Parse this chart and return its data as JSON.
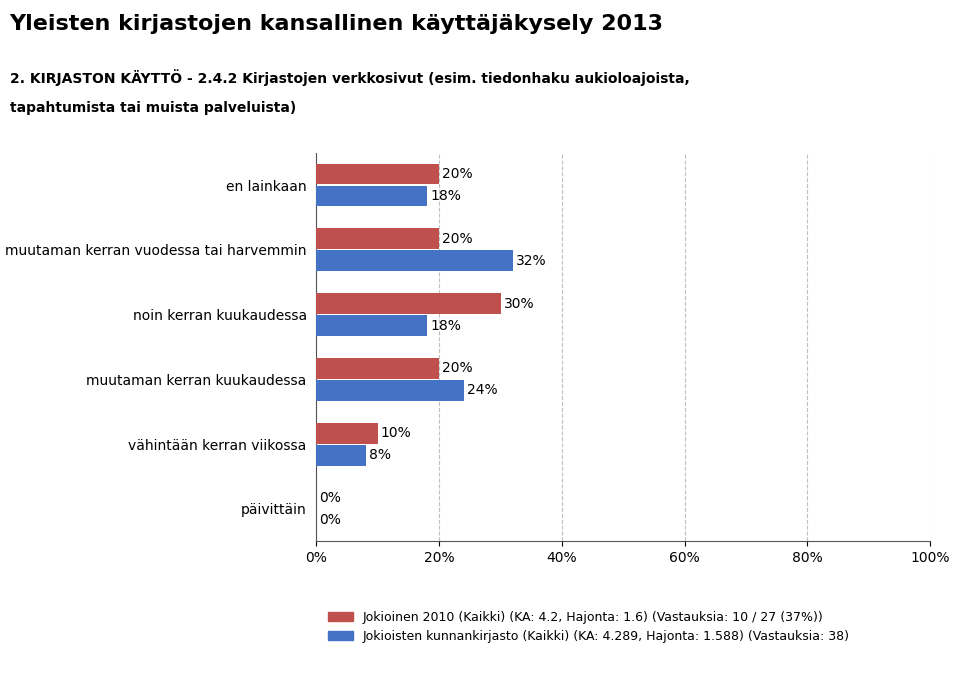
{
  "title": "Yleisten kirjastojen kansallinen käyttäjäkysely 2013",
  "subtitle1": "2. KIRJASTON KÄYTTÖ - 2.4.2 Kirjastojen verkkosivut (esim. tiedonhaku aukioloajoista,",
  "subtitle2": "tapahtumista tai muista palveluista)",
  "categories": [
    "en lainkaan",
    "muutaman kerran vuodessa tai harvemmin",
    "noin kerran kuukaudessa",
    "muutaman kerran kuukaudessa",
    "vähintään kerran viikossa",
    "päivittäin"
  ],
  "series1_name": "Jokioinen 2010 (Kaikki) (KA: 4.2, Hajonta: 1.6) (Vastauksia: 10 / 27 (37%))",
  "series2_name": "Jokioisten kunnankirjasto (Kaikki) (KA: 4.289, Hajonta: 1.588) (Vastauksia: 38)",
  "series1_values": [
    0.2,
    0.2,
    0.3,
    0.2,
    0.1,
    0.0
  ],
  "series2_values": [
    0.18,
    0.32,
    0.18,
    0.24,
    0.08,
    0.0
  ],
  "series1_color": "#C0504D",
  "series2_color": "#4472C4",
  "xlim": [
    0,
    1.0
  ],
  "xticks": [
    0.0,
    0.2,
    0.4,
    0.6,
    0.8,
    1.0
  ],
  "xticklabels": [
    "0%",
    "20%",
    "40%",
    "60%",
    "80%",
    "100%"
  ],
  "bg_color": "#FFFFFF",
  "grid_color": "#C0C0C0"
}
